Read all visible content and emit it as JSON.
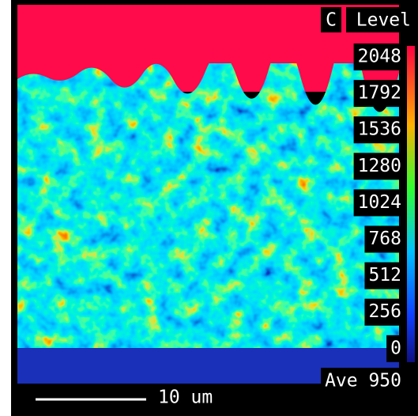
{
  "map": {
    "element": "C",
    "label": "Level",
    "levels": [
      2048,
      1792,
      1536,
      1280,
      1024,
      768,
      512,
      256,
      0
    ],
    "average": "Ave 950",
    "scale_bar": "10 um"
  }
}
